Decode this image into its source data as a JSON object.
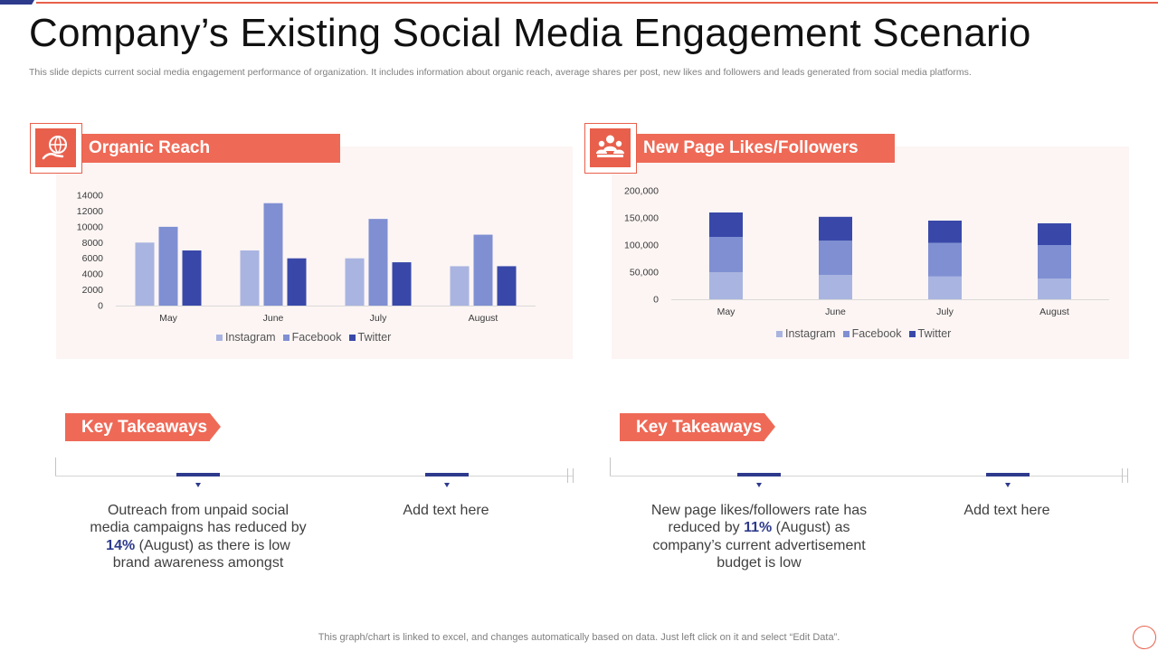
{
  "slide": {
    "title": "Company’s Existing Social Media Engagement Scenario",
    "subtitle": "This slide depicts current social media engagement performance of organization. It includes information about organic reach, average shares per post, new likes and followers and leads generated from social media platforms.",
    "footer_note": "This graph/chart is linked to excel,  and changes automatically based on data. Just left click on it and select “Edit Data”."
  },
  "colors": {
    "accent": "#EE6A57",
    "instagram": "#A9B4E0",
    "facebook": "#7F8FD2",
    "twitter": "#3948A8",
    "highlight": "#2E3A8C"
  },
  "panels": {
    "organic": {
      "title": "Organic Reach",
      "icon": "globe-hand-icon"
    },
    "likes": {
      "title": "New Page Likes/Followers",
      "icon": "people-group-icon"
    }
  },
  "chart_data": [
    {
      "type": "bar",
      "title": "Organic Reach",
      "categories": [
        "May",
        "June",
        "July",
        "August"
      ],
      "series": [
        {
          "name": "Instagram",
          "values": [
            8000,
            7000,
            6000,
            5000
          ]
        },
        {
          "name": "Facebook",
          "values": [
            10000,
            13000,
            11000,
            9000
          ]
        },
        {
          "name": "Twitter",
          "values": [
            7000,
            6000,
            5500,
            5000
          ]
        }
      ],
      "ylim": [
        0,
        14000
      ],
      "yticks": [
        0,
        2000,
        4000,
        6000,
        8000,
        10000,
        12000,
        14000
      ],
      "ytick_labels": [
        "0",
        "2000",
        "4000",
        "6000",
        "8000",
        "10000",
        "12000",
        "14000"
      ],
      "legend": "bottom",
      "grid": false
    },
    {
      "type": "bar",
      "stacked": true,
      "title": "New Page Likes/Followers",
      "categories": [
        "May",
        "June",
        "July",
        "August"
      ],
      "series": [
        {
          "name": "Instagram",
          "values": [
            50000,
            45000,
            42000,
            38000
          ]
        },
        {
          "name": "Facebook",
          "values": [
            65000,
            63000,
            62000,
            62000
          ]
        },
        {
          "name": "Twitter",
          "values": [
            45000,
            44000,
            41000,
            40000
          ]
        }
      ],
      "ylim": [
        0,
        200000
      ],
      "yticks": [
        0,
        50000,
        100000,
        150000,
        200000
      ],
      "ytick_labels": [
        "0",
        "50,000",
        "100,000",
        "150,000",
        "200,000"
      ],
      "legend": "bottom",
      "grid": false
    }
  ],
  "takeaways": {
    "left": {
      "label": "Key Takeaways",
      "item1": {
        "before": "Outreach from unpaid social media campaigns has reduced by ",
        "highlight": "14%",
        "after": " (August) as there is low brand awareness amongst"
      },
      "item2": "Add text here"
    },
    "right": {
      "label": "Key Takeaways",
      "item1": {
        "before": "New page likes/followers rate has reduced by ",
        "highlight": "11%",
        "after": " (August) as company’s current advertisement budget is low"
      },
      "item2": "Add text here"
    }
  }
}
